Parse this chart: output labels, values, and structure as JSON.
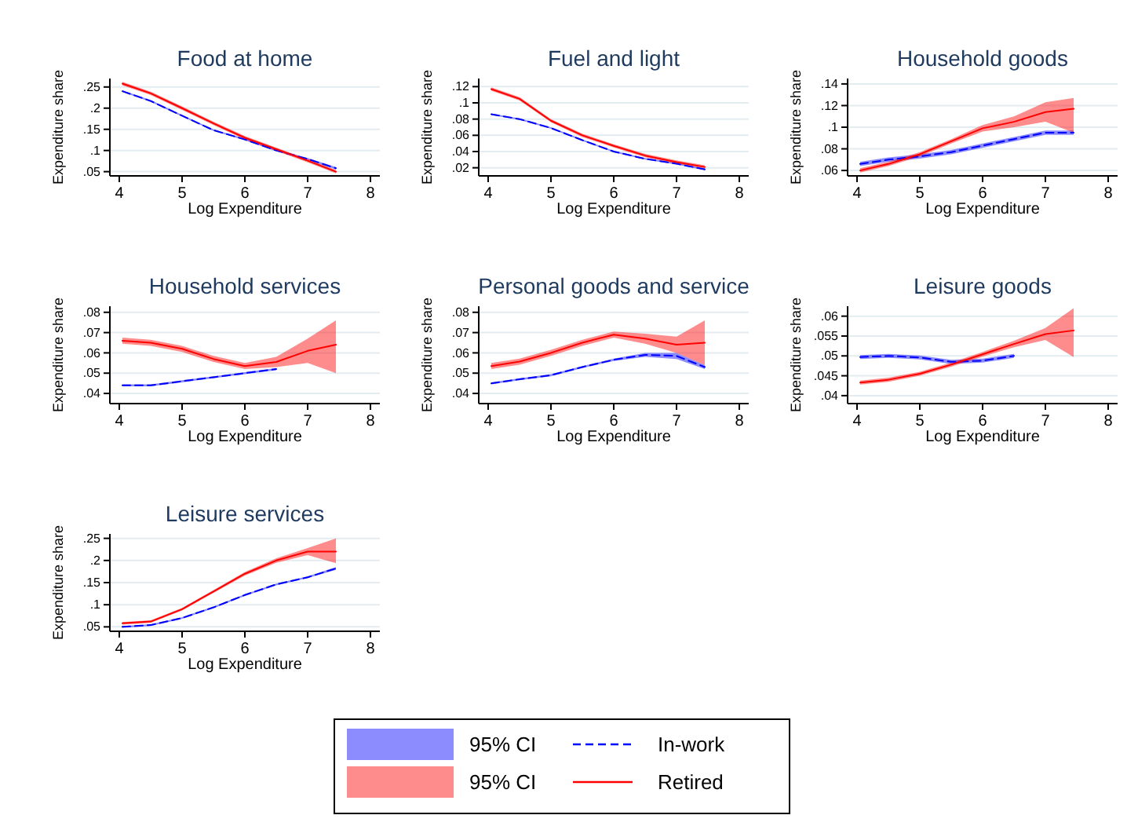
{
  "chart_data": [
    {
      "type": "line",
      "title": "Food at home",
      "xlabel": "Log Expenditure",
      "ylabel": "Expenditure share",
      "x": [
        4.05,
        4.5,
        5,
        5.5,
        6,
        6.5,
        7,
        7.45
      ],
      "xlim": [
        3.85,
        8.15
      ],
      "xticks": [
        4,
        5,
        6,
        7,
        8
      ],
      "ylim": [
        0.04,
        0.27
      ],
      "yticks": [
        {
          "value": 0.05,
          "label": ".05"
        },
        {
          "value": 0.1,
          "label": ".1"
        },
        {
          "value": 0.15,
          "label": ".15"
        },
        {
          "value": 0.2,
          "label": ".2"
        },
        {
          "value": 0.25,
          "label": ".25"
        }
      ],
      "grid": "y",
      "series": [
        {
          "color": "#0000ff",
          "line_style": "dashed",
          "values": [
            0.24,
            0.217,
            0.182,
            0.148,
            0.126,
            0.1,
            0.08,
            0.058
          ],
          "lower": [
            0.238,
            0.215,
            0.18,
            0.146,
            0.124,
            0.098,
            0.078,
            0.055
          ],
          "upper": [
            0.242,
            0.219,
            0.184,
            0.15,
            0.128,
            0.102,
            0.082,
            0.061
          ]
        },
        {
          "color": "#ff0000",
          "line_style": "solid",
          "values": [
            0.258,
            0.235,
            0.2,
            0.164,
            0.13,
            0.103,
            0.076,
            0.05
          ],
          "lower": [
            0.254,
            0.231,
            0.196,
            0.16,
            0.126,
            0.099,
            0.072,
            0.046
          ],
          "upper": [
            0.262,
            0.239,
            0.204,
            0.168,
            0.134,
            0.107,
            0.08,
            0.054
          ]
        }
      ]
    },
    {
      "type": "line",
      "title": "Fuel and light",
      "xlabel": "Log Expenditure",
      "ylabel": "Expenditure share",
      "x": [
        4.05,
        4.5,
        5,
        5.5,
        6,
        6.5,
        7,
        7.45
      ],
      "xlim": [
        3.85,
        8.15
      ],
      "xticks": [
        4,
        5,
        6,
        7,
        8
      ],
      "ylim": [
        0.01,
        0.13
      ],
      "yticks": [
        {
          "value": 0.02,
          "label": ".02"
        },
        {
          "value": 0.04,
          "label": ".04"
        },
        {
          "value": 0.06,
          "label": ".06"
        },
        {
          "value": 0.08,
          "label": ".08"
        },
        {
          "value": 0.1,
          "label": ".1"
        },
        {
          "value": 0.12,
          "label": ".12"
        }
      ],
      "grid": "y",
      "series": [
        {
          "color": "#0000ff",
          "line_style": "dashed",
          "values": [
            0.086,
            0.08,
            0.069,
            0.054,
            0.04,
            0.031,
            0.025,
            0.018
          ],
          "lower": [
            0.085,
            0.079,
            0.068,
            0.053,
            0.039,
            0.03,
            0.024,
            0.017
          ],
          "upper": [
            0.087,
            0.081,
            0.07,
            0.055,
            0.041,
            0.032,
            0.026,
            0.019
          ]
        },
        {
          "color": "#ff0000",
          "line_style": "solid",
          "values": [
            0.117,
            0.105,
            0.078,
            0.06,
            0.047,
            0.035,
            0.027,
            0.021
          ],
          "lower": [
            0.115,
            0.103,
            0.076,
            0.058,
            0.045,
            0.033,
            0.025,
            0.019
          ],
          "upper": [
            0.119,
            0.107,
            0.08,
            0.062,
            0.049,
            0.037,
            0.029,
            0.023
          ]
        }
      ]
    },
    {
      "type": "line",
      "title": "Household goods",
      "xlabel": "Log Expenditure",
      "ylabel": "Expenditure share",
      "x": [
        4.05,
        4.5,
        5,
        5.5,
        6,
        6.5,
        7,
        7.45
      ],
      "xlim": [
        3.85,
        8.15
      ],
      "xticks": [
        4,
        5,
        6,
        7,
        8
      ],
      "ylim": [
        0.055,
        0.145
      ],
      "yticks": [
        {
          "value": 0.06,
          "label": ".06"
        },
        {
          "value": 0.08,
          "label": ".08"
        },
        {
          "value": 0.1,
          "label": ".1"
        },
        {
          "value": 0.12,
          "label": ".12"
        },
        {
          "value": 0.14,
          "label": ".14"
        }
      ],
      "grid": "y",
      "series": [
        {
          "color": "#0000ff",
          "line_style": "dashed",
          "values": [
            0.066,
            0.07,
            0.073,
            0.077,
            0.083,
            0.089,
            0.095,
            0.095
          ],
          "lower": [
            0.064,
            0.068,
            0.071,
            0.075,
            0.081,
            0.087,
            0.093,
            0.093
          ],
          "upper": [
            0.068,
            0.072,
            0.075,
            0.079,
            0.085,
            0.091,
            0.097,
            0.097
          ]
        },
        {
          "color": "#ff0000",
          "line_style": "solid",
          "values": [
            0.06,
            0.066,
            0.075,
            0.087,
            0.099,
            0.105,
            0.114,
            0.117
          ],
          "lower": [
            0.058,
            0.064,
            0.073,
            0.085,
            0.096,
            0.1,
            0.105,
            0.095
          ],
          "upper": [
            0.062,
            0.068,
            0.077,
            0.089,
            0.102,
            0.11,
            0.123,
            0.127
          ]
        }
      ]
    },
    {
      "type": "line",
      "title": "Household services",
      "xlabel": "Log Expenditure",
      "ylabel": "Expenditure share",
      "x": [
        4.05,
        4.5,
        5,
        5.5,
        6,
        6.5,
        7,
        7.45
      ],
      "xlim": [
        3.85,
        8.15
      ],
      "xticks": [
        4,
        5,
        6,
        7,
        8
      ],
      "ylim": [
        0.035,
        0.083
      ],
      "yticks": [
        {
          "value": 0.04,
          "label": ".04"
        },
        {
          "value": 0.05,
          "label": ".05"
        },
        {
          "value": 0.06,
          "label": ".06"
        },
        {
          "value": 0.07,
          "label": ".07"
        },
        {
          "value": 0.08,
          "label": ".08"
        }
      ],
      "grid": "y",
      "series": [
        {
          "color": "#0000ff",
          "line_style": "dashed",
          "values": [
            0.044,
            0.044,
            0.046,
            0.048,
            0.05,
            0.052,
            null,
            null
          ],
          "lower": [
            0.0435,
            0.0435,
            0.0455,
            0.0475,
            0.0495,
            0.0515,
            null,
            null
          ],
          "upper": [
            0.0445,
            0.0445,
            0.0465,
            0.0485,
            0.0505,
            0.0525,
            null,
            null
          ]
        },
        {
          "color": "#ff0000",
          "line_style": "solid",
          "values": [
            0.066,
            0.065,
            0.062,
            0.057,
            0.0535,
            0.0555,
            0.061,
            0.064
          ],
          "lower": [
            0.0645,
            0.0635,
            0.0605,
            0.0555,
            0.052,
            0.053,
            0.055,
            0.05
          ],
          "upper": [
            0.0675,
            0.0665,
            0.0635,
            0.0585,
            0.055,
            0.058,
            0.067,
            0.076
          ]
        }
      ]
    },
    {
      "type": "line",
      "title": "Personal goods and service",
      "xlabel": "Log Expenditure",
      "ylabel": "Expenditure share",
      "x": [
        4.05,
        4.5,
        5,
        5.5,
        6,
        6.5,
        7,
        7.45
      ],
      "xlim": [
        3.85,
        8.15
      ],
      "xticks": [
        4,
        5,
        6,
        7,
        8
      ],
      "ylim": [
        0.035,
        0.083
      ],
      "yticks": [
        {
          "value": 0.04,
          "label": ".04"
        },
        {
          "value": 0.05,
          "label": ".05"
        },
        {
          "value": 0.06,
          "label": ".06"
        },
        {
          "value": 0.07,
          "label": ".07"
        },
        {
          "value": 0.08,
          "label": ".08"
        }
      ],
      "grid": "y",
      "series": [
        {
          "color": "#0000ff",
          "line_style": "dashed",
          "values": [
            0.045,
            0.047,
            0.049,
            0.053,
            0.0566,
            0.059,
            0.0585,
            0.053
          ],
          "lower": [
            0.0445,
            0.0465,
            0.0485,
            0.0525,
            0.056,
            0.058,
            0.057,
            0.052
          ],
          "upper": [
            0.0455,
            0.0475,
            0.0495,
            0.0535,
            0.0572,
            0.06,
            0.06,
            0.054
          ]
        },
        {
          "color": "#ff0000",
          "line_style": "solid",
          "values": [
            0.0535,
            0.0557,
            0.06,
            0.065,
            0.069,
            0.067,
            0.064,
            0.065
          ],
          "lower": [
            0.052,
            0.0542,
            0.0585,
            0.0635,
            0.0675,
            0.0645,
            0.06,
            0.054
          ],
          "upper": [
            0.055,
            0.0572,
            0.0615,
            0.0665,
            0.0705,
            0.0695,
            0.068,
            0.076
          ]
        }
      ]
    },
    {
      "type": "line",
      "title": "Leisure goods",
      "xlabel": "Log Expenditure",
      "ylabel": "Expenditure share",
      "x": [
        4.05,
        4.5,
        5,
        5.5,
        6,
        6.5,
        7,
        7.45
      ],
      "xlim": [
        3.85,
        8.15
      ],
      "xticks": [
        4,
        5,
        6,
        7,
        8
      ],
      "ylim": [
        0.038,
        0.0625
      ],
      "yticks": [
        {
          "value": 0.04,
          "label": ".04"
        },
        {
          "value": 0.045,
          "label": ".045"
        },
        {
          "value": 0.05,
          "label": ".05"
        },
        {
          "value": 0.055,
          "label": ".055"
        },
        {
          "value": 0.06,
          "label": ".06"
        }
      ],
      "grid": "y",
      "series": [
        {
          "color": "#0000ff",
          "line_style": "dashed",
          "values": [
            0.0497,
            0.05,
            0.0496,
            0.0485,
            0.0488,
            0.05,
            null,
            null
          ],
          "lower": [
            0.0492,
            0.0495,
            0.0491,
            0.048,
            0.0483,
            0.0495,
            null,
            null
          ],
          "upper": [
            0.0502,
            0.0505,
            0.0501,
            0.049,
            0.0493,
            0.0505,
            null,
            null
          ]
        },
        {
          "color": "#ff0000",
          "line_style": "solid",
          "values": [
            0.0433,
            0.044,
            0.0455,
            0.0478,
            0.0504,
            0.053,
            0.0555,
            0.0564
          ],
          "lower": [
            0.0428,
            0.0435,
            0.045,
            0.0473,
            0.0498,
            0.0522,
            0.054,
            0.0497
          ],
          "upper": [
            0.0438,
            0.0445,
            0.046,
            0.0483,
            0.051,
            0.0538,
            0.057,
            0.062
          ]
        }
      ]
    },
    {
      "type": "line",
      "title": "Leisure services",
      "xlabel": "Log Expenditure",
      "ylabel": "Expenditure share",
      "x": [
        4.05,
        4.5,
        5,
        5.5,
        6,
        6.5,
        7,
        7.45
      ],
      "xlim": [
        3.85,
        8.15
      ],
      "xticks": [
        4,
        5,
        6,
        7,
        8
      ],
      "ylim": [
        0.04,
        0.26
      ],
      "yticks": [
        {
          "value": 0.05,
          "label": ".05"
        },
        {
          "value": 0.1,
          "label": ".1"
        },
        {
          "value": 0.15,
          "label": ".15"
        },
        {
          "value": 0.2,
          "label": ".2"
        },
        {
          "value": 0.25,
          "label": ".25"
        }
      ],
      "grid": "y",
      "legend": "bottom",
      "annotations": [
        "95% CI",
        "95% CI"
      ],
      "series": [
        {
          "name": "In-work",
          "color": "#0000ff",
          "line_style": "dashed",
          "values": [
            0.05,
            0.054,
            0.07,
            0.094,
            0.122,
            0.146,
            0.162,
            0.182
          ],
          "lower": [
            0.048,
            0.052,
            0.068,
            0.092,
            0.12,
            0.144,
            0.16,
            0.179
          ],
          "upper": [
            0.052,
            0.056,
            0.072,
            0.096,
            0.124,
            0.148,
            0.164,
            0.185
          ]
        },
        {
          "name": "Retired",
          "color": "#ff0000",
          "line_style": "solid",
          "values": [
            0.058,
            0.062,
            0.09,
            0.13,
            0.17,
            0.2,
            0.22,
            0.22
          ],
          "lower": [
            0.055,
            0.059,
            0.087,
            0.127,
            0.166,
            0.195,
            0.212,
            0.194
          ],
          "upper": [
            0.061,
            0.065,
            0.093,
            0.133,
            0.174,
            0.205,
            0.228,
            0.25
          ]
        }
      ]
    }
  ]
}
